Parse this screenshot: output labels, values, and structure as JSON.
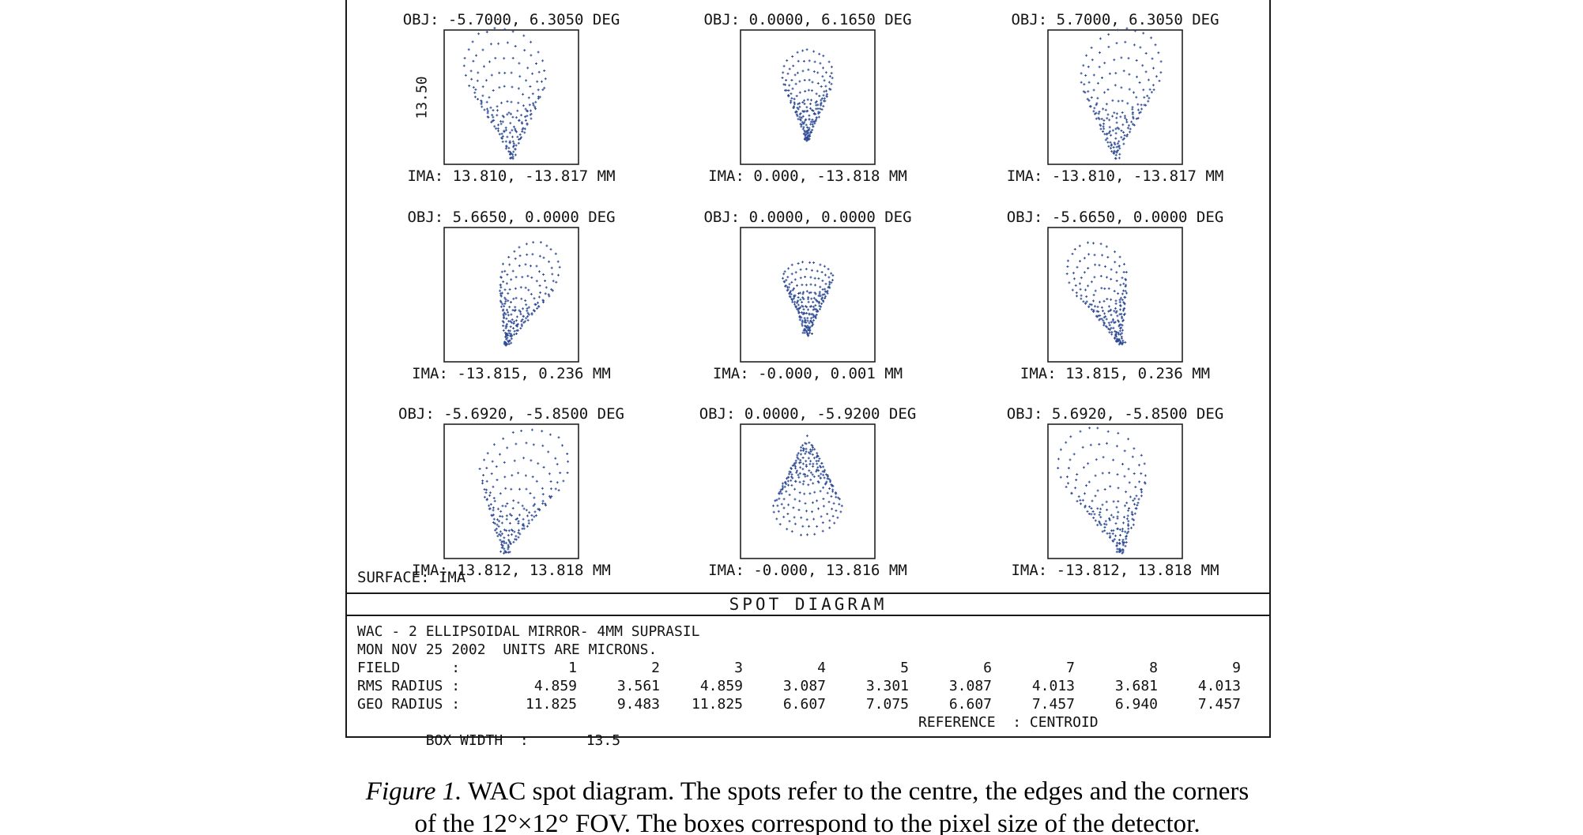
{
  "figure": {
    "scale_label": "13.50",
    "surface_label": "SURFACE: IMA",
    "title": "SPOT DIAGRAM",
    "cells": [
      {
        "obj": "OBJ: -5.7000, 6.3050 DEG",
        "ima": "IMA: 13.810, -13.817 MM"
      },
      {
        "obj": "OBJ: 0.0000, 6.1650 DEG",
        "ima": "IMA: 0.000, -13.818 MM"
      },
      {
        "obj": "OBJ: 5.7000, 6.3050 DEG",
        "ima": "IMA: -13.810, -13.817 MM"
      },
      {
        "obj": "OBJ: 5.6650, 0.0000 DEG",
        "ima": "IMA: -13.815, 0.236 MM"
      },
      {
        "obj": "OBJ: 0.0000, 0.0000 DEG",
        "ima": "IMA: -0.000, 0.001 MM"
      },
      {
        "obj": "OBJ: -5.6650, 0.0000 DEG",
        "ima": "IMA: 13.815, 0.236 MM"
      },
      {
        "obj": "OBJ: -5.6920, -5.8500 DEG",
        "ima": "IMA: 13.812, 13.818 MM"
      },
      {
        "obj": "OBJ: 0.0000, -5.9200 DEG",
        "ima": "IMA: -0.000, 13.816 MM"
      },
      {
        "obj": "OBJ: 5.6920, -5.8500 DEG",
        "ima": "IMA: -13.812, 13.818 MM"
      }
    ],
    "info": {
      "line1": "WAC - 2 ELLIPSOIDAL MIRROR- 4MM SUPRASIL",
      "line2": "MON NOV 25 2002  UNITS ARE MICRONS.",
      "rows": [
        {
          "label": "FIELD      :",
          "values": [
            "1",
            "2",
            "3",
            "4",
            "5",
            "6",
            "7",
            "8",
            "9"
          ]
        },
        {
          "label": "RMS RADIUS :",
          "values": [
            "4.859",
            "3.561",
            "4.859",
            "3.087",
            "3.301",
            "3.087",
            "4.013",
            "3.681",
            "4.013"
          ]
        },
        {
          "label": "GEO RADIUS :",
          "values": [
            "11.825",
            "9.483",
            "11.825",
            "6.607",
            "7.075",
            "6.607",
            "7.457",
            "6.940",
            "7.457"
          ]
        }
      ],
      "box_width_label": "BOX WIDTH  :",
      "box_width_value": "13.5",
      "reference": "REFERENCE  : CENTROID"
    }
  },
  "caption": {
    "line1_label": "Figure 1.",
    "line1_text": " WAC spot diagram. The spots refer to the centre, the edges and the corners",
    "line2": "of the 12°×12° FOV. The boxes correspond to the pixel size of the detector."
  },
  "chart_data": {
    "type": "scatter",
    "title": "SPOT DIAGRAM",
    "lens": "WAC - 2 ELLIPSOIDAL MIRROR- 4MM SUPRASIL",
    "date": "MON NOV 25 2002",
    "units": "MICRONS",
    "surface": "IMA",
    "reference": "CENTROID",
    "box_width_um": 13.5,
    "marker_color": "#2e4b94",
    "fields": [
      {
        "field": 1,
        "obj_deg": [
          -5.7,
          6.305
        ],
        "ima_mm": [
          13.81,
          -13.817
        ],
        "rms_um": 4.859,
        "geo_um": 11.825
      },
      {
        "field": 2,
        "obj_deg": [
          0.0,
          6.165
        ],
        "ima_mm": [
          0.0,
          -13.818
        ],
        "rms_um": 3.561,
        "geo_um": 9.483
      },
      {
        "field": 3,
        "obj_deg": [
          5.7,
          6.305
        ],
        "ima_mm": [
          -13.81,
          -13.817
        ],
        "rms_um": 4.859,
        "geo_um": 11.825
      },
      {
        "field": 4,
        "obj_deg": [
          5.665,
          0.0
        ],
        "ima_mm": [
          -13.815,
          0.236
        ],
        "rms_um": 3.087,
        "geo_um": 6.607
      },
      {
        "field": 5,
        "obj_deg": [
          0.0,
          0.0
        ],
        "ima_mm": [
          -0.0,
          0.001
        ],
        "rms_um": 3.301,
        "geo_um": 7.075
      },
      {
        "field": 6,
        "obj_deg": [
          -5.665,
          0.0
        ],
        "ima_mm": [
          13.815,
          0.236
        ],
        "rms_um": 3.087,
        "geo_um": 6.607
      },
      {
        "field": 7,
        "obj_deg": [
          -5.692,
          -5.85
        ],
        "ima_mm": [
          13.812,
          13.818
        ],
        "rms_um": 4.013,
        "geo_um": 7.457
      },
      {
        "field": 8,
        "obj_deg": [
          0.0,
          -5.92
        ],
        "ima_mm": [
          -0.0,
          13.816
        ],
        "rms_um": 3.681,
        "geo_um": 6.94
      },
      {
        "field": 9,
        "obj_deg": [
          5.692,
          -5.85
        ],
        "ima_mm": [
          -13.812,
          13.818
        ],
        "rms_um": 4.013,
        "geo_um": 7.457
      }
    ],
    "spot_patterns": [
      {
        "ax": 0.5,
        "ay": 0.95,
        "dir": 2,
        "B": 55,
        "wedge": 0.92,
        "flat": 0.95,
        "shear": -0.04,
        "curve": -0.1,
        "rings": 9,
        "ringPow": 0.5,
        "jitter": 1.6,
        "blob": 8,
        "flipX": false
      },
      {
        "ax": 0.5,
        "ay": 0.82,
        "dir": 0,
        "B": 40,
        "wedge": 0.8,
        "flat": 0.85,
        "shear": 0,
        "curve": 0,
        "rings": 9,
        "ringPow": 0.5,
        "jitter": 1.4,
        "blob": 22,
        "flipX": false
      },
      {
        "ax": 0.5,
        "ay": 0.95,
        "dir": 2,
        "B": 55,
        "wedge": 0.92,
        "flat": 0.95,
        "shear": -0.04,
        "curve": -0.1,
        "rings": 9,
        "ringPow": 0.5,
        "jitter": 1.6,
        "blob": 8,
        "flipX": true
      },
      {
        "ax": 0.46,
        "ay": 0.87,
        "dir": 13,
        "B": 46,
        "wedge": 0.78,
        "flat": 0.92,
        "shear": 0.05,
        "curve": 0.09,
        "rings": 9,
        "ringPow": 0.5,
        "jitter": 1.5,
        "blob": 16,
        "flipX": false
      },
      {
        "ax": 0.5,
        "ay": 0.8,
        "dir": 0,
        "B": 36,
        "wedge": 0.88,
        "flat": 0.55,
        "shear": 0,
        "curve": 0,
        "rings": 10,
        "ringPow": 0.5,
        "jitter": 1.2,
        "blob": 10,
        "flipX": false
      },
      {
        "ax": 0.46,
        "ay": 0.87,
        "dir": 13,
        "B": 46,
        "wedge": 0.78,
        "flat": 0.92,
        "shear": 0.05,
        "curve": 0.09,
        "rings": 9,
        "ringPow": 0.5,
        "jitter": 1.5,
        "blob": 16,
        "flipX": true
      },
      {
        "ax": 0.45,
        "ay": 0.96,
        "dir": 3,
        "B": 54,
        "wedge": 1.0,
        "flat": 0.95,
        "shear": 0.1,
        "curve": 0.12,
        "rings": 9,
        "ringPow": 0.55,
        "jitter": 1.8,
        "blob": 8,
        "flipX": false
      },
      {
        "ax": 0.5,
        "ay": 0.08,
        "dir": 180,
        "B": 46,
        "wedge": 0.92,
        "flat": 0.75,
        "shear": 0,
        "curve": 0,
        "rings": 10,
        "ringPow": 0.38,
        "jitter": 1.3,
        "blob": 0,
        "flipX": false
      },
      {
        "ax": 0.45,
        "ay": 0.96,
        "dir": 3,
        "B": 54,
        "wedge": 1.0,
        "flat": 0.95,
        "shear": 0.1,
        "curve": 0.12,
        "rings": 9,
        "ringPow": 0.55,
        "jitter": 1.8,
        "blob": 8,
        "flipX": true
      }
    ]
  }
}
